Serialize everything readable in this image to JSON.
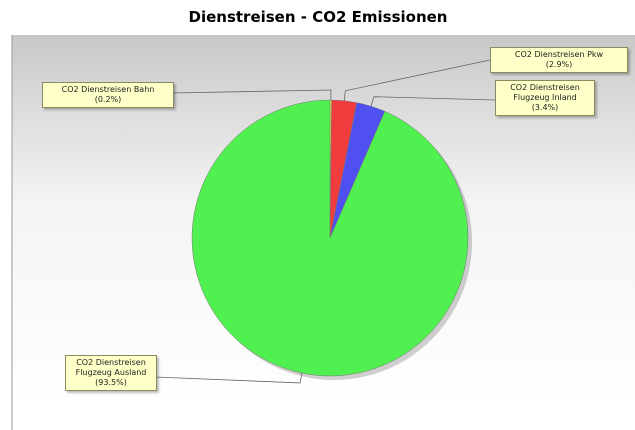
{
  "chart_data": {
    "type": "pie",
    "title": "Dienstreisen - CO2 Emissionen",
    "categories": [
      "CO2 Dienstreisen Bahn",
      "CO2 Dienstreisen Pkw",
      "CO2 Dienstreisen Flugzeug Inland",
      "CO2 Dienstreisen Flugzeug Ausland"
    ],
    "values": [
      0.2,
      2.9,
      3.4,
      93.5
    ],
    "value_labels": [
      "(0.2%)",
      "(2.9%)",
      "(3.4%)",
      "(93.5%)"
    ],
    "colors": [
      "#e8e040",
      "#f03c3c",
      "#5050f0",
      "#50f050"
    ]
  }
}
